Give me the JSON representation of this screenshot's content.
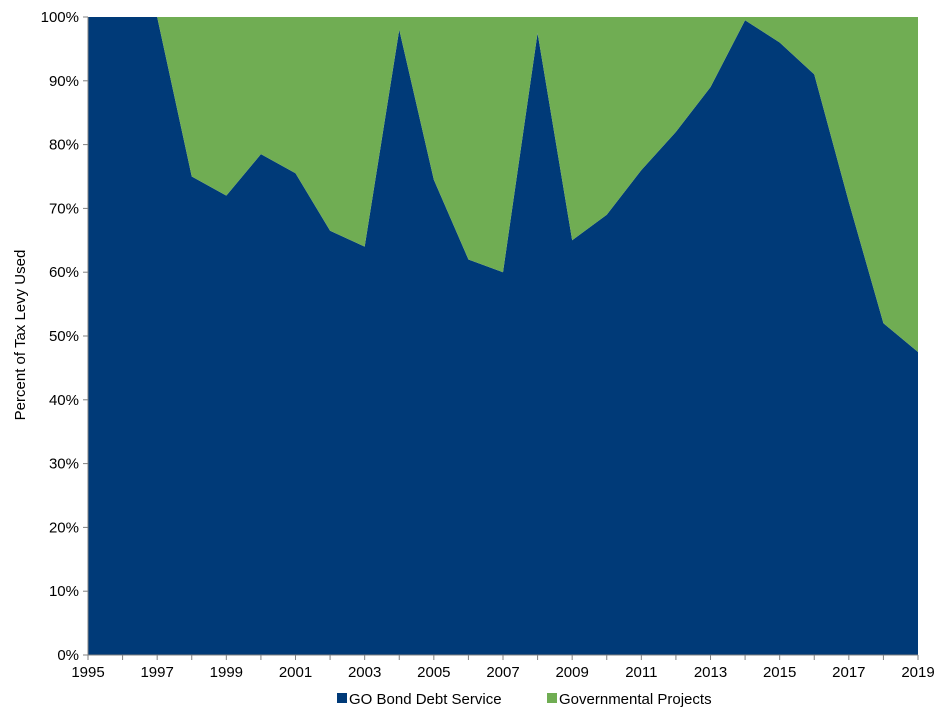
{
  "chart_data": {
    "type": "area",
    "stacked": true,
    "percent": true,
    "ylabel": "Percent of Tax Levy Used",
    "xlabel": "",
    "title": "",
    "x": [
      1995,
      1996,
      1997,
      1998,
      1999,
      2000,
      2001,
      2002,
      2003,
      2004,
      2005,
      2006,
      2007,
      2008,
      2009,
      2010,
      2011,
      2012,
      2013,
      2014,
      2015,
      2016,
      2017,
      2018,
      2019
    ],
    "x_tick_labels": [
      "1995",
      "1997",
      "1999",
      "2001",
      "2003",
      "2005",
      "2007",
      "2009",
      "2011",
      "2013",
      "2015",
      "2017",
      "2019"
    ],
    "y_tick_labels": [
      "0%",
      "10%",
      "20%",
      "30%",
      "40%",
      "50%",
      "60%",
      "70%",
      "80%",
      "90%",
      "100%"
    ],
    "ylim": [
      0,
      100
    ],
    "xlim": [
      1995,
      2019
    ],
    "grid": false,
    "legend_position": "bottom",
    "series": [
      {
        "name": "GO Bond Debt Service",
        "color": "#003A78",
        "values": [
          100,
          100,
          100,
          75,
          72,
          78.5,
          75.5,
          66.5,
          64,
          98,
          74.5,
          62,
          60,
          97.5,
          65,
          69,
          76,
          82,
          89,
          99.5,
          96,
          91,
          71,
          52,
          47.5
        ]
      },
      {
        "name": "Governmental Projects",
        "color": "#70AD53",
        "values": [
          0,
          0,
          0,
          25,
          28,
          21.5,
          24.5,
          33.5,
          36,
          2,
          25.5,
          38,
          40,
          2.5,
          35,
          31,
          24,
          18,
          11,
          0.5,
          4,
          9,
          29,
          48,
          52.5
        ]
      }
    ]
  }
}
